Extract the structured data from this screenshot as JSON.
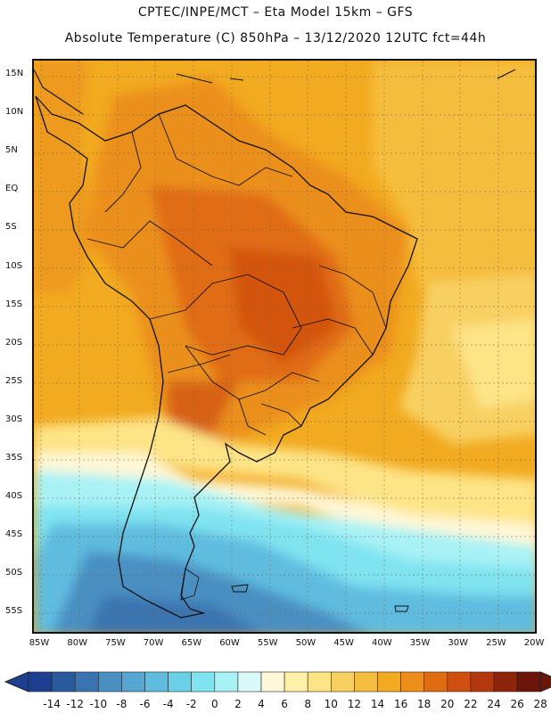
{
  "title_line1": "CPTEC/INPE/MCT –  Eta Model 15km – GFS",
  "title_line2": "Absolute Temperature (C) 850hPa – 13/12/2020 12UTC fct=44h",
  "lat_labels": [
    "15N",
    "10N",
    "5N",
    "EQ",
    "5S",
    "10S",
    "15S",
    "20S",
    "25S",
    "30S",
    "35S",
    "40S",
    "45S",
    "50S",
    "55S"
  ],
  "lon_labels": [
    "85W",
    "80W",
    "75W",
    "70W",
    "65W",
    "60W",
    "55W",
    "50W",
    "45W",
    "40W",
    "35W",
    "30W",
    "25W",
    "20W"
  ],
  "colorbar": {
    "labels": [
      "-14",
      "-12",
      "-10",
      "-8",
      "-6",
      "-4",
      "-2",
      "0",
      "2",
      "4",
      "6",
      "8",
      "10",
      "12",
      "14",
      "16",
      "18",
      "20",
      "22",
      "24",
      "26",
      "28"
    ],
    "colors": [
      "#1e3f8f",
      "#2a5a9e",
      "#3a74b0",
      "#4a8fc2",
      "#55a6d2",
      "#5fbcdf",
      "#6ad0e8",
      "#7fe3f0",
      "#a8f2f6",
      "#d9f8f8",
      "#fff7d6",
      "#fff0a8",
      "#fde487",
      "#f8d062",
      "#f5bd3d",
      "#f2aa20",
      "#eb8f1a",
      "#e06c12",
      "#cf4f10",
      "#b4380e",
      "#8e240a",
      "#6b1508"
    ]
  }
}
